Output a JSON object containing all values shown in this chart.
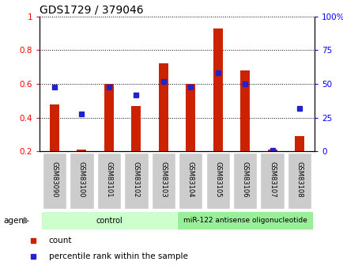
{
  "title": "GDS1729 / 379046",
  "samples": [
    "GSM83090",
    "GSM83100",
    "GSM83101",
    "GSM83102",
    "GSM83103",
    "GSM83104",
    "GSM83105",
    "GSM83106",
    "GSM83107",
    "GSM83108"
  ],
  "count": [
    0.48,
    0.21,
    0.6,
    0.47,
    0.72,
    0.6,
    0.93,
    0.68,
    0.21,
    0.29
  ],
  "percentile": [
    48,
    28,
    48,
    42,
    52,
    48,
    58,
    50,
    1,
    32
  ],
  "ylim_left": [
    0.2,
    1.0
  ],
  "ylim_right": [
    0,
    100
  ],
  "yticks_left": [
    0.2,
    0.4,
    0.6,
    0.8,
    1.0
  ],
  "ytick_labels_left": [
    "0.2",
    "0.4",
    "0.6",
    "0.8",
    "1"
  ],
  "yticks_right": [
    0,
    25,
    50,
    75,
    100
  ],
  "ytick_labels_right": [
    "0",
    "25",
    "50",
    "75",
    "100%"
  ],
  "bar_color": "#cc2200",
  "dot_color": "#2222cc",
  "bar_bottom": 0.2,
  "bar_width": 0.35,
  "control_count": 5,
  "treatment_count": 5,
  "control_label": "control",
  "treatment_label": "miR-122 antisense oligonucleotide",
  "agent_label": "agent",
  "legend_count": "count",
  "legend_percentile": "percentile rank within the sample",
  "control_color": "#ccffcc",
  "treatment_color": "#99ee99",
  "tick_label_bg": "#cccccc",
  "title_fontsize": 10,
  "axis_fontsize": 7.5,
  "legend_fontsize": 7.5,
  "agent_fontsize": 8
}
